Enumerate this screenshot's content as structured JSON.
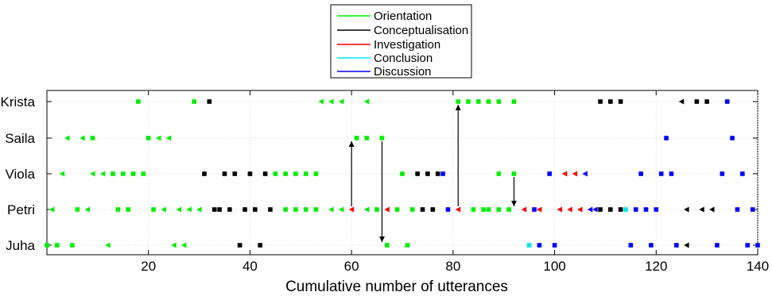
{
  "chart_data": {
    "type": "scatter",
    "xlabel": "Cumulative number of utterances",
    "ylabel": "",
    "xlim": [
      0,
      140
    ],
    "x_ticks": [
      20,
      40,
      60,
      80,
      100,
      120,
      140
    ],
    "grid": "on",
    "legend_position": "top-center",
    "categories": [
      "Krista",
      "Saila",
      "Viola",
      "Petri",
      "Juha"
    ],
    "legend": [
      {
        "name": "Orientation",
        "color": "#00ee00"
      },
      {
        "name": "Conceptualisation",
        "color": "#000000"
      },
      {
        "name": "Investigation",
        "color": "#ff0000"
      },
      {
        "name": "Conclusion",
        "color": "#00e5ee"
      },
      {
        "name": "Discussion",
        "color": "#0000ff"
      }
    ],
    "series": [
      {
        "name": "Orientation",
        "color": "#00ee00",
        "points": [
          {
            "x": 0,
            "y": "Juha",
            "m": "s"
          },
          {
            "x": 2,
            "y": "Juha",
            "m": "s"
          },
          {
            "x": 5,
            "y": "Juha",
            "m": "s"
          },
          {
            "x": 12,
            "y": "Juha",
            "m": "t"
          },
          {
            "x": 25,
            "y": "Juha",
            "m": "t"
          },
          {
            "x": 27,
            "y": "Juha",
            "m": "t"
          },
          {
            "x": 67,
            "y": "Juha",
            "m": "s"
          },
          {
            "x": 71,
            "y": "Juha",
            "m": "s"
          },
          {
            "x": 1,
            "y": "Petri",
            "m": "t"
          },
          {
            "x": 6,
            "y": "Petri",
            "m": "s"
          },
          {
            "x": 8,
            "y": "Petri",
            "m": "t"
          },
          {
            "x": 14,
            "y": "Petri",
            "m": "s"
          },
          {
            "x": 16,
            "y": "Petri",
            "m": "s"
          },
          {
            "x": 21,
            "y": "Petri",
            "m": "s"
          },
          {
            "x": 23,
            "y": "Petri",
            "m": "t"
          },
          {
            "x": 26,
            "y": "Petri",
            "m": "t"
          },
          {
            "x": 28,
            "y": "Petri",
            "m": "t"
          },
          {
            "x": 30,
            "y": "Petri",
            "m": "t"
          },
          {
            "x": 47,
            "y": "Petri",
            "m": "s"
          },
          {
            "x": 49,
            "y": "Petri",
            "m": "s"
          },
          {
            "x": 51,
            "y": "Petri",
            "m": "s"
          },
          {
            "x": 53,
            "y": "Petri",
            "m": "s"
          },
          {
            "x": 56,
            "y": "Petri",
            "m": "t"
          },
          {
            "x": 58,
            "y": "Petri",
            "m": "t"
          },
          {
            "x": 63,
            "y": "Petri",
            "m": "t"
          },
          {
            "x": 65,
            "y": "Petri",
            "m": "s"
          },
          {
            "x": 69,
            "y": "Petri",
            "m": "s"
          },
          {
            "x": 72,
            "y": "Petri",
            "m": "s"
          },
          {
            "x": 84,
            "y": "Petri",
            "m": "s"
          },
          {
            "x": 86,
            "y": "Petri",
            "m": "s"
          },
          {
            "x": 87,
            "y": "Petri",
            "m": "s"
          },
          {
            "x": 89,
            "y": "Petri",
            "m": "s"
          },
          {
            "x": 91,
            "y": "Petri",
            "m": "s"
          },
          {
            "x": 3,
            "y": "Viola",
            "m": "t"
          },
          {
            "x": 9,
            "y": "Viola",
            "m": "t"
          },
          {
            "x": 11,
            "y": "Viola",
            "m": "t"
          },
          {
            "x": 13,
            "y": "Viola",
            "m": "s"
          },
          {
            "x": 15,
            "y": "Viola",
            "m": "s"
          },
          {
            "x": 17,
            "y": "Viola",
            "m": "s"
          },
          {
            "x": 19,
            "y": "Viola",
            "m": "s"
          },
          {
            "x": 45,
            "y": "Viola",
            "m": "s"
          },
          {
            "x": 47,
            "y": "Viola",
            "m": "s"
          },
          {
            "x": 49,
            "y": "Viola",
            "m": "s"
          },
          {
            "x": 51,
            "y": "Viola",
            "m": "s"
          },
          {
            "x": 53,
            "y": "Viola",
            "m": "s"
          },
          {
            "x": 70,
            "y": "Viola",
            "m": "s"
          },
          {
            "x": 89,
            "y": "Viola",
            "m": "s"
          },
          {
            "x": 92,
            "y": "Viola",
            "m": "s"
          },
          {
            "x": 4,
            "y": "Saila",
            "m": "t"
          },
          {
            "x": 7,
            "y": "Saila",
            "m": "t"
          },
          {
            "x": 9,
            "y": "Saila",
            "m": "s"
          },
          {
            "x": 20,
            "y": "Saila",
            "m": "s"
          },
          {
            "x": 22,
            "y": "Saila",
            "m": "t"
          },
          {
            "x": 24,
            "y": "Saila",
            "m": "t"
          },
          {
            "x": 61,
            "y": "Saila",
            "m": "s"
          },
          {
            "x": 63,
            "y": "Saila",
            "m": "s"
          },
          {
            "x": 66,
            "y": "Saila",
            "m": "s"
          },
          {
            "x": 18,
            "y": "Krista",
            "m": "s"
          },
          {
            "x": 29,
            "y": "Krista",
            "m": "s"
          },
          {
            "x": 54,
            "y": "Krista",
            "m": "t"
          },
          {
            "x": 56,
            "y": "Krista",
            "m": "t"
          },
          {
            "x": 58,
            "y": "Krista",
            "m": "t"
          },
          {
            "x": 63,
            "y": "Krista",
            "m": "t"
          },
          {
            "x": 81,
            "y": "Krista",
            "m": "s"
          },
          {
            "x": 83,
            "y": "Krista",
            "m": "s"
          },
          {
            "x": 85,
            "y": "Krista",
            "m": "s"
          },
          {
            "x": 87,
            "y": "Krista",
            "m": "s"
          },
          {
            "x": 89,
            "y": "Krista",
            "m": "s"
          },
          {
            "x": 92,
            "y": "Krista",
            "m": "s"
          }
        ]
      },
      {
        "name": "Conceptualisation",
        "color": "#000000",
        "points": [
          {
            "x": 38,
            "y": "Juha",
            "m": "s"
          },
          {
            "x": 42,
            "y": "Juha",
            "m": "s"
          },
          {
            "x": 126,
            "y": "Juha",
            "m": "t"
          },
          {
            "x": 33,
            "y": "Petri",
            "m": "s"
          },
          {
            "x": 34,
            "y": "Petri",
            "m": "s"
          },
          {
            "x": 36,
            "y": "Petri",
            "m": "s"
          },
          {
            "x": 39,
            "y": "Petri",
            "m": "s"
          },
          {
            "x": 41,
            "y": "Petri",
            "m": "s"
          },
          {
            "x": 44,
            "y": "Petri",
            "m": "s"
          },
          {
            "x": 74,
            "y": "Petri",
            "m": "s"
          },
          {
            "x": 76,
            "y": "Petri",
            "m": "s"
          },
          {
            "x": 109,
            "y": "Petri",
            "m": "s"
          },
          {
            "x": 111,
            "y": "Petri",
            "m": "s"
          },
          {
            "x": 113,
            "y": "Petri",
            "m": "s"
          },
          {
            "x": 126,
            "y": "Petri",
            "m": "t"
          },
          {
            "x": 129,
            "y": "Petri",
            "m": "t"
          },
          {
            "x": 131,
            "y": "Petri",
            "m": "t"
          },
          {
            "x": 31,
            "y": "Viola",
            "m": "s"
          },
          {
            "x": 35,
            "y": "Viola",
            "m": "s"
          },
          {
            "x": 37,
            "y": "Viola",
            "m": "s"
          },
          {
            "x": 40,
            "y": "Viola",
            "m": "s"
          },
          {
            "x": 43,
            "y": "Viola",
            "m": "s"
          },
          {
            "x": 73,
            "y": "Viola",
            "m": "s"
          },
          {
            "x": 75,
            "y": "Viola",
            "m": "s"
          },
          {
            "x": 77,
            "y": "Viola",
            "m": "s"
          },
          {
            "x": 32,
            "y": "Krista",
            "m": "s"
          },
          {
            "x": 109,
            "y": "Krista",
            "m": "s"
          },
          {
            "x": 111,
            "y": "Krista",
            "m": "s"
          },
          {
            "x": 113,
            "y": "Krista",
            "m": "s"
          },
          {
            "x": 125,
            "y": "Krista",
            "m": "t"
          },
          {
            "x": 128,
            "y": "Krista",
            "m": "s"
          },
          {
            "x": 130,
            "y": "Krista",
            "m": "s"
          }
        ]
      },
      {
        "name": "Investigation",
        "color": "#ff0000",
        "points": [
          {
            "x": 60,
            "y": "Petri",
            "m": "t"
          },
          {
            "x": 67,
            "y": "Petri",
            "m": "t"
          },
          {
            "x": 81,
            "y": "Petri",
            "m": "t"
          },
          {
            "x": 94,
            "y": "Petri",
            "m": "t"
          },
          {
            "x": 97,
            "y": "Petri",
            "m": "t"
          },
          {
            "x": 101,
            "y": "Petri",
            "m": "t"
          },
          {
            "x": 103,
            "y": "Petri",
            "m": "t"
          },
          {
            "x": 105,
            "y": "Petri",
            "m": "t"
          },
          {
            "x": 102,
            "y": "Viola",
            "m": "t"
          },
          {
            "x": 104,
            "y": "Viola",
            "m": "t"
          }
        ]
      },
      {
        "name": "Conclusion",
        "color": "#00e5ee",
        "points": [
          {
            "x": 95,
            "y": "Juha",
            "m": "s"
          },
          {
            "x": 114,
            "y": "Petri",
            "m": "s"
          }
        ]
      },
      {
        "name": "Discussion",
        "color": "#0000ff",
        "points": [
          {
            "x": 97,
            "y": "Juha",
            "m": "s"
          },
          {
            "x": 100,
            "y": "Juha",
            "m": "s"
          },
          {
            "x": 115,
            "y": "Juha",
            "m": "s"
          },
          {
            "x": 119,
            "y": "Juha",
            "m": "s"
          },
          {
            "x": 124,
            "y": "Juha",
            "m": "s"
          },
          {
            "x": 132,
            "y": "Juha",
            "m": "s"
          },
          {
            "x": 138,
            "y": "Juha",
            "m": "s"
          },
          {
            "x": 140,
            "y": "Juha",
            "m": "s"
          },
          {
            "x": 79,
            "y": "Petri",
            "m": "s"
          },
          {
            "x": 96,
            "y": "Petri",
            "m": "s"
          },
          {
            "x": 107,
            "y": "Petri",
            "m": "t"
          },
          {
            "x": 108,
            "y": "Petri",
            "m": "t"
          },
          {
            "x": 116,
            "y": "Petri",
            "m": "s"
          },
          {
            "x": 118,
            "y": "Petri",
            "m": "s"
          },
          {
            "x": 120,
            "y": "Petri",
            "m": "s"
          },
          {
            "x": 136,
            "y": "Petri",
            "m": "s"
          },
          {
            "x": 139,
            "y": "Petri",
            "m": "s"
          },
          {
            "x": 78,
            "y": "Viola",
            "m": "s"
          },
          {
            "x": 99,
            "y": "Viola",
            "m": "s"
          },
          {
            "x": 106,
            "y": "Viola",
            "m": "t"
          },
          {
            "x": 117,
            "y": "Viola",
            "m": "s"
          },
          {
            "x": 121,
            "y": "Viola",
            "m": "s"
          },
          {
            "x": 123,
            "y": "Viola",
            "m": "s"
          },
          {
            "x": 133,
            "y": "Viola",
            "m": "s"
          },
          {
            "x": 137,
            "y": "Viola",
            "m": "s"
          },
          {
            "x": 122,
            "y": "Saila",
            "m": "s"
          },
          {
            "x": 135,
            "y": "Saila",
            "m": "s"
          },
          {
            "x": 134,
            "y": "Krista",
            "m": "s"
          }
        ]
      }
    ],
    "arrows": [
      {
        "x": 60,
        "from": "Petri",
        "to": "Saila"
      },
      {
        "x": 66,
        "from": "Saila",
        "to": "Juha"
      },
      {
        "x": 81,
        "from": "Petri",
        "to": "Krista"
      },
      {
        "x": 92,
        "from": "Viola",
        "to": "Petri"
      }
    ]
  }
}
